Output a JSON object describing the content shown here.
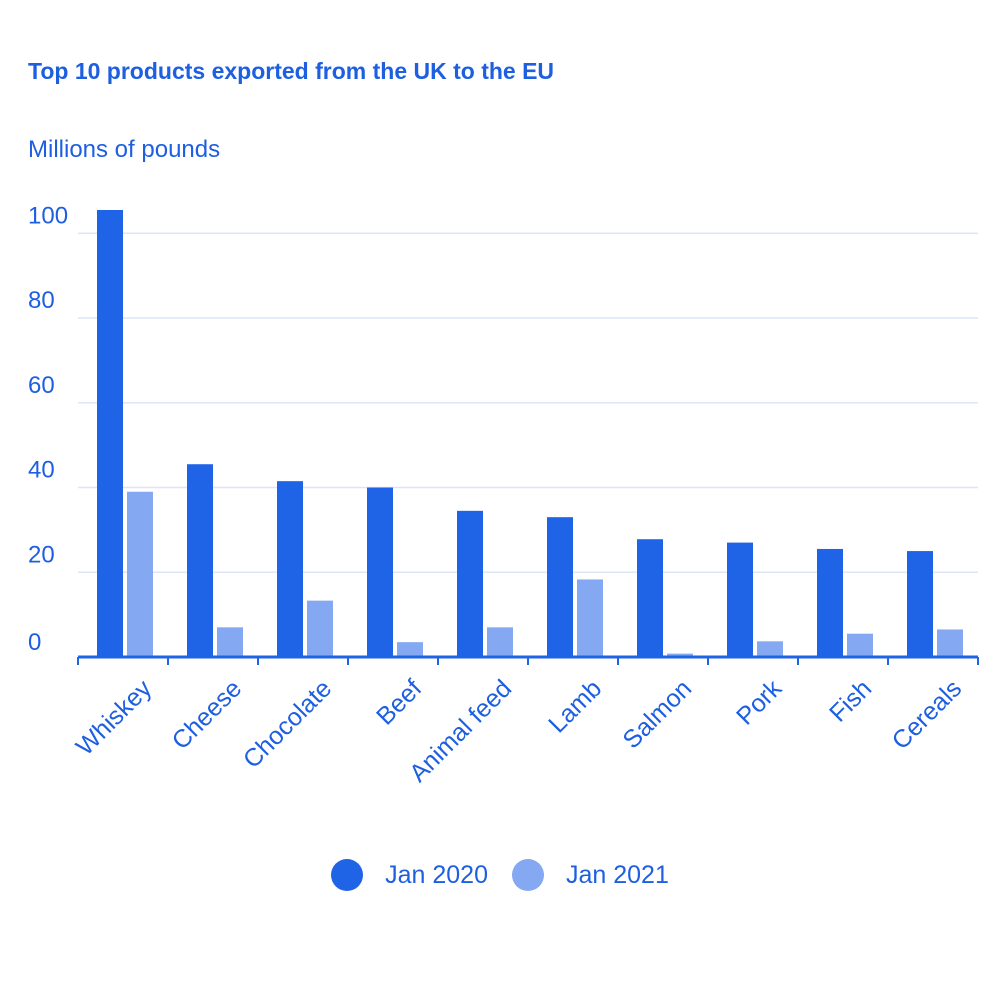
{
  "chart_data": {
    "type": "bar",
    "title": "Top 10 products exported from the UK to the EU",
    "ylabel": "Millions of pounds",
    "xlabel": "",
    "categories": [
      "Whiskey",
      "Cheese",
      "Chocolate",
      "Beef",
      "Animal feed",
      "Lamb",
      "Salmon",
      "Pork",
      "Fish",
      "Cereals"
    ],
    "series": [
      {
        "name": "Jan 2020",
        "color": "#1f63e6",
        "values": [
          105.5,
          45.5,
          41.5,
          40,
          34.5,
          33,
          27.8,
          27,
          25.5,
          25
        ]
      },
      {
        "name": "Jan 2021",
        "color": "#84a8f2",
        "values": [
          39,
          7,
          13.3,
          3.5,
          7,
          18.3,
          0.8,
          3.7,
          5.5,
          6.5
        ]
      }
    ],
    "yticks": [
      0,
      20,
      40,
      60,
      80,
      100
    ],
    "ylim": [
      0,
      105.5
    ],
    "grid": true,
    "legend_position": "bottom"
  }
}
